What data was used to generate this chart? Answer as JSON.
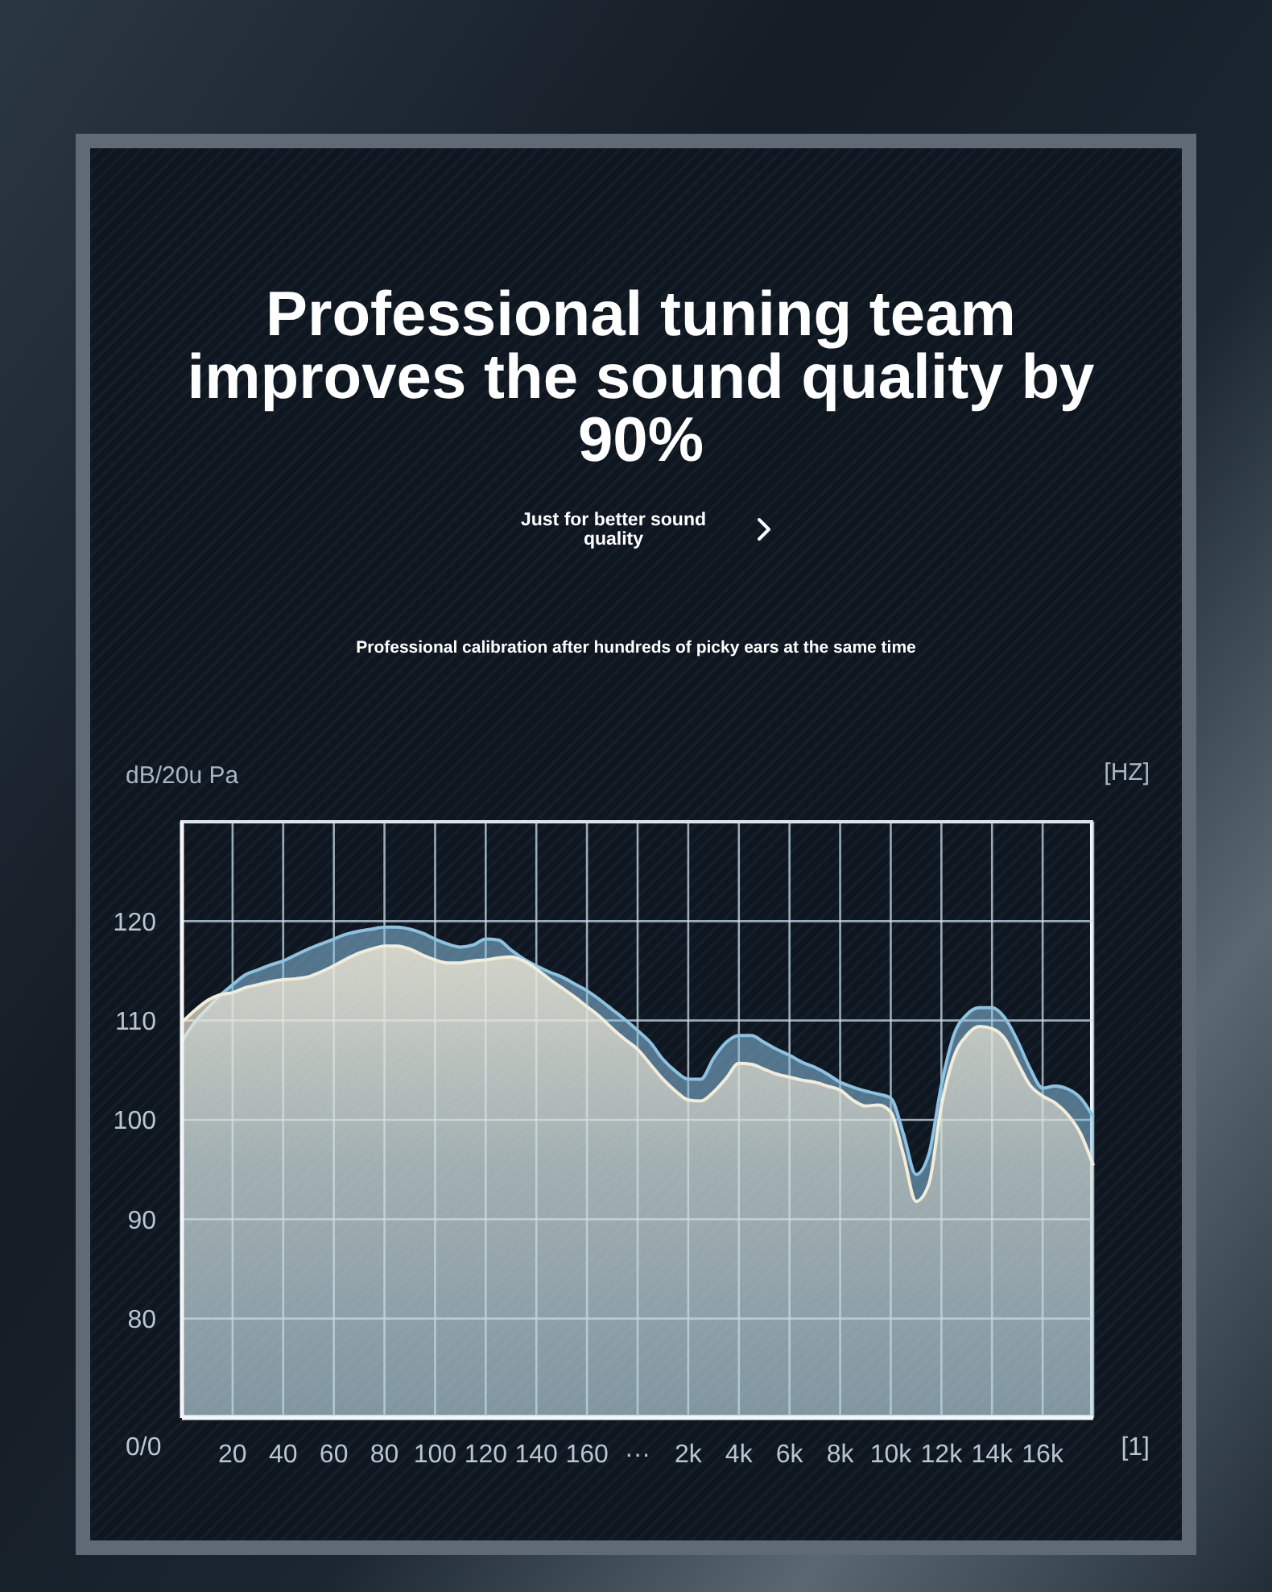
{
  "chart_data": {
    "type": "area",
    "title": "Professional tuning team improves the sound quality by 90%",
    "subtitle": "Just for better sound quality",
    "xlabel": "[HZ]",
    "ylabel": "dB/20u Pa",
    "annotations": [
      "Professional calibration after hundreds of picky ears at the same time",
      "0/0",
      "[1]"
    ],
    "categories": [
      null,
      null,
      null,
      null,
      "20",
      null,
      null,
      null,
      "40",
      null,
      null,
      null,
      "60",
      null,
      null,
      null,
      "80",
      null,
      null,
      null,
      "100",
      null,
      null,
      null,
      "120",
      null,
      null,
      null,
      "140",
      null,
      null,
      null,
      "160",
      null,
      null,
      null,
      "···",
      null,
      null,
      null,
      "2k",
      null,
      null,
      null,
      "4k",
      null,
      null,
      null,
      "6k",
      null,
      null,
      null,
      "8k",
      null,
      null,
      null,
      "10k",
      null,
      null,
      null,
      "12k",
      null,
      null,
      null,
      "14k",
      null,
      null,
      null,
      "16k",
      null,
      null,
      null,
      null
    ],
    "series": [
      {
        "color": "#8cc3e3",
        "values": [
          107.9,
          109.8,
          111.2,
          112.5,
          113.6,
          114.6,
          115.1,
          115.6,
          116.0,
          116.6,
          117.2,
          117.7,
          118.2,
          118.7,
          119.0,
          119.2,
          119.4,
          119.4,
          119.2,
          118.8,
          118.2,
          117.7,
          117.4,
          117.6,
          118.2,
          118.1,
          117.1,
          116.2,
          115.5,
          114.9,
          114.4,
          113.7,
          113.0,
          112.1,
          111.1,
          110.1,
          109.0,
          107.8,
          106.1,
          104.9,
          104.1,
          104.1,
          106.2,
          107.8,
          108.5,
          108.5,
          107.8,
          107.1,
          106.5,
          105.8,
          105.3,
          104.6,
          103.8,
          103.3,
          102.9,
          102.6,
          102.2,
          98.6,
          94.5,
          96.5,
          103.5,
          108.6,
          110.6,
          111.3,
          111.3,
          110.3,
          108.0,
          105.2,
          103.2,
          103.4,
          103.1,
          102.2,
          100.3
        ]
      },
      {
        "color": "#f3ecd9",
        "values": [
          109.8,
          111.0,
          112.0,
          112.6,
          112.8,
          113.3,
          113.6,
          113.9,
          114.1,
          114.2,
          114.4,
          114.9,
          115.5,
          116.2,
          116.8,
          117.2,
          117.5,
          117.5,
          117.2,
          116.6,
          116.1,
          115.8,
          115.8,
          116.0,
          116.1,
          116.3,
          116.4,
          116.0,
          115.2,
          114.2,
          113.3,
          112.4,
          111.4,
          110.4,
          109.2,
          108.1,
          107.1,
          105.6,
          104.1,
          102.9,
          102.0,
          101.9,
          102.8,
          104.2,
          105.7,
          105.6,
          105.1,
          104.6,
          104.3,
          104.0,
          103.8,
          103.4,
          103.0,
          102.0,
          101.4,
          101.5,
          100.8,
          96.5,
          91.8,
          93.5,
          101.4,
          106.4,
          108.5,
          109.4,
          109.2,
          108.2,
          105.8,
          103.5,
          102.4,
          101.7,
          100.5,
          98.6,
          95.4
        ]
      }
    ],
    "ylim": [
      70,
      130
    ],
    "yticks": [
      80,
      90,
      100,
      110,
      120
    ],
    "grid": true
  }
}
